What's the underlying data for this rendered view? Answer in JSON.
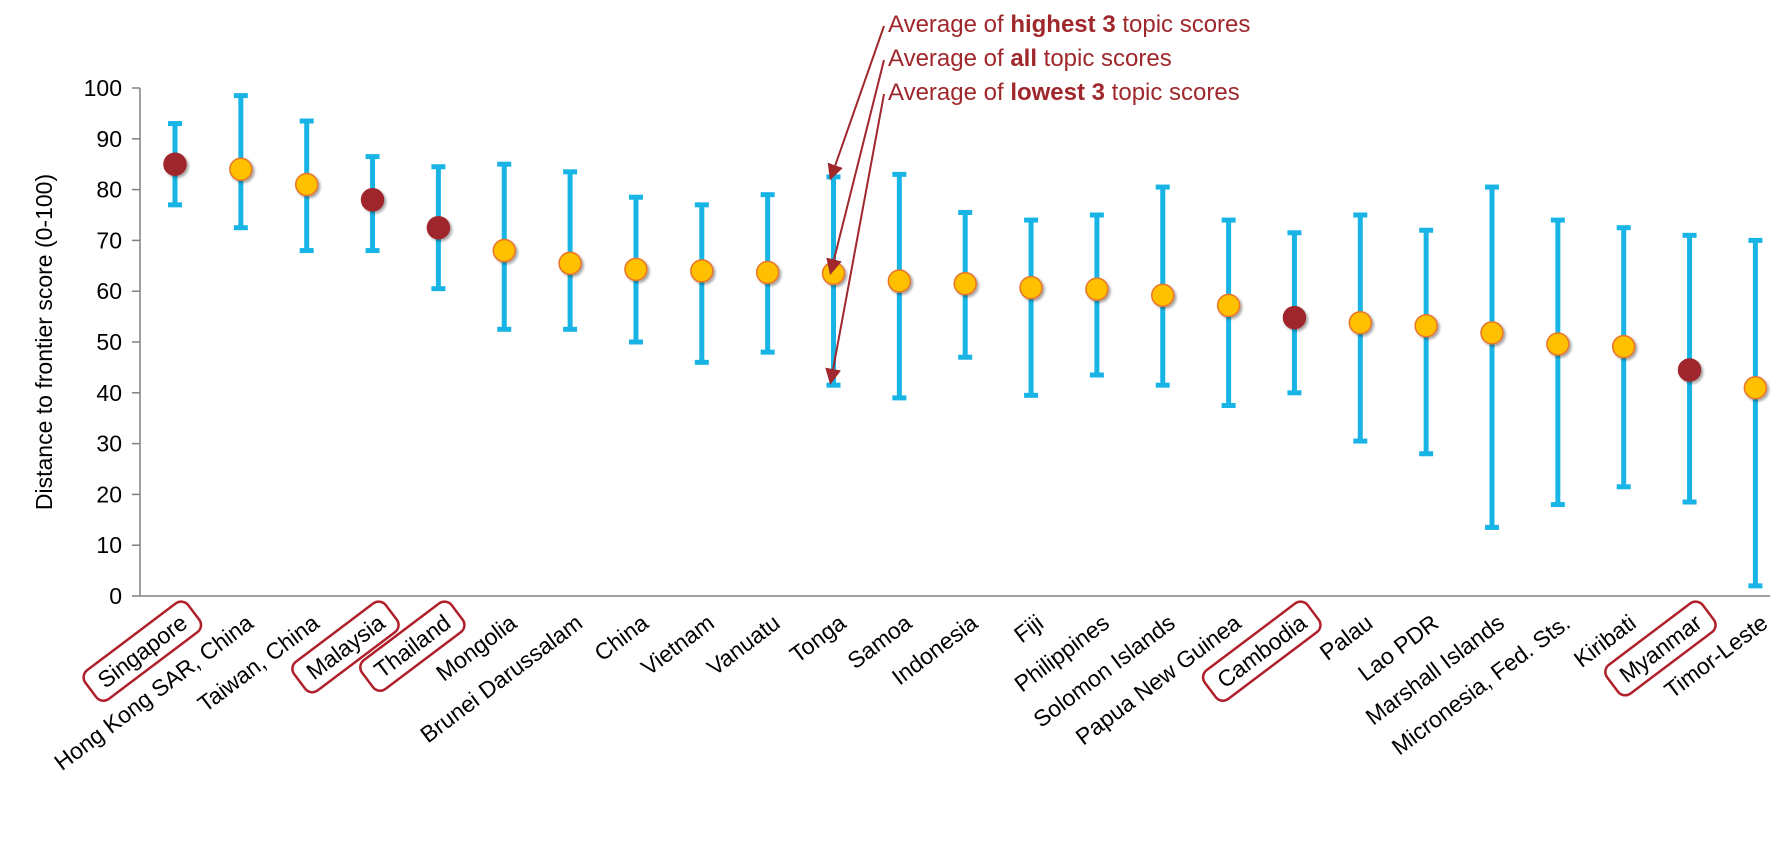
{
  "chart_data": {
    "type": "scatter",
    "ylabel": "Distance to frontier score (0-100)",
    "ylim": [
      0,
      100
    ],
    "yticks": [
      0,
      10,
      20,
      30,
      40,
      50,
      60,
      70,
      80,
      90,
      100
    ],
    "grid": false,
    "categories": [
      "Singapore",
      "Hong Kong SAR, China",
      "Taiwan, China",
      "Malaysia",
      "Thailand",
      "Mongolia",
      "Brunei Darussalam",
      "China",
      "Vietnam",
      "Vanuatu",
      "Tonga",
      "Samoa",
      "Indonesia",
      "Fiji",
      "Philippines",
      "Solomon Islands",
      "Papua New Guinea",
      "Cambodia",
      "Palau",
      "Lao PDR",
      "Marshall Islands",
      "Micronesia, Fed. Sts.",
      "Kiribati",
      "Myanmar",
      "Timor-Leste"
    ],
    "series": [
      {
        "key": "highest3",
        "values": [
          93,
          98.5,
          93.5,
          86.5,
          84.5,
          85,
          83.5,
          78.5,
          77,
          79,
          82.5,
          83,
          75.5,
          74,
          75,
          80.5,
          74,
          71.5,
          75,
          72,
          80.5,
          74,
          72.5,
          71,
          70
        ]
      },
      {
        "key": "all",
        "values": [
          85,
          84,
          81,
          78,
          72.5,
          68,
          65.5,
          64.3,
          64,
          63.7,
          63.5,
          62,
          61.5,
          60.7,
          60.4,
          59.2,
          57.2,
          54.8,
          53.8,
          53.2,
          51.8,
          49.6,
          49.1,
          44.5,
          41
        ]
      },
      {
        "key": "lowest3",
        "values": [
          77,
          72.5,
          68,
          68,
          60.5,
          52.5,
          52.5,
          50,
          46,
          48,
          41.5,
          39,
          47,
          39.5,
          43.5,
          41.5,
          37.5,
          40,
          30.5,
          28,
          13.5,
          18,
          21.5,
          18.5,
          2
        ]
      }
    ],
    "highlighted": [
      "Singapore",
      "Malaysia",
      "Thailand",
      "Cambodia",
      "Myanmar"
    ],
    "legend": [
      {
        "prefix": "Average of ",
        "bold": "highest 3",
        "suffix": " topic scores",
        "points_to": "highest3",
        "category": "Tonga"
      },
      {
        "prefix": "Average of ",
        "bold": "all",
        "suffix": " topic scores",
        "points_to": "all",
        "category": "Tonga"
      },
      {
        "prefix": "Average of ",
        "bold": "lowest 3",
        "suffix": " topic scores",
        "points_to": "lowest3",
        "category": "Tonga"
      }
    ],
    "legend_placement": "top-center"
  },
  "colors": {
    "error_bar": "#19b4e6",
    "marker_default": "#ffc000",
    "marker_default_stroke": "#e8752a",
    "marker_highlight": "#a0282d",
    "highlight_box": "#b0202a",
    "legend_text": "#a0282d",
    "axis": "#808080"
  }
}
